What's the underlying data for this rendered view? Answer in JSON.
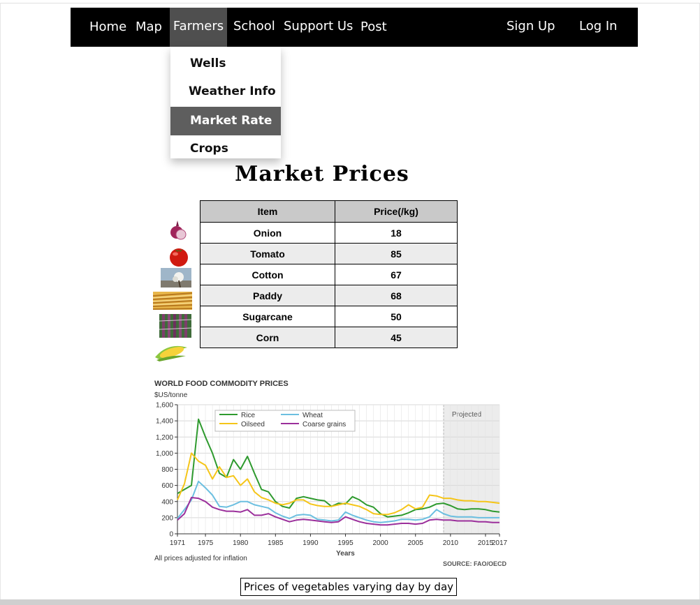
{
  "nav": {
    "home": "Home",
    "map": "Map",
    "farmers": "Farmers",
    "school": "School",
    "support": "Support Us",
    "post": "Post",
    "signup": "Sign Up",
    "login": "Log In"
  },
  "dropdown": {
    "wells": "Wells",
    "weather": "Weather Info",
    "market": "Market Rate",
    "crops": "Crops"
  },
  "page_title": "Market Prices",
  "table": {
    "headers": [
      "Item",
      "Price(/kg)"
    ],
    "rows": [
      {
        "item": "Onion",
        "price": "18"
      },
      {
        "item": "Tomato",
        "price": "85"
      },
      {
        "item": "Cotton",
        "price": "67"
      },
      {
        "item": "Paddy",
        "price": "68"
      },
      {
        "item": "Sugarcane",
        "price": "50"
      },
      {
        "item": "Corn",
        "price": "45"
      }
    ]
  },
  "chart_data": {
    "type": "line",
    "title": "WORLD FOOD COMMODITY PRICES",
    "subtitle": "$US/tonne",
    "xlabel": "Years",
    "ylabel": "",
    "xlim": [
      1971,
      2017
    ],
    "ylim": [
      0,
      1600
    ],
    "x_ticks": [
      "1971",
      "1975",
      "1980",
      "1985",
      "1990",
      "1995",
      "2000",
      "2005",
      "2010",
      "2015",
      "2017"
    ],
    "y_ticks": [
      "0",
      "200",
      "400",
      "600",
      "800",
      "1,000",
      "1,200",
      "1,400",
      "1,600"
    ],
    "projected_label": "Projected",
    "projected_start": 2009,
    "footnote": "All prices adjusted for inflation",
    "source": "SOURCE: FAO/OECD",
    "legend_position": "top-left",
    "grid": true,
    "x": [
      1971,
      1972,
      1973,
      1974,
      1975,
      1976,
      1977,
      1978,
      1979,
      1980,
      1981,
      1982,
      1983,
      1984,
      1985,
      1986,
      1987,
      1988,
      1989,
      1990,
      1991,
      1992,
      1993,
      1994,
      1995,
      1996,
      1997,
      1998,
      1999,
      2000,
      2001,
      2002,
      2003,
      2004,
      2005,
      2006,
      2007,
      2008,
      2009,
      2010,
      2011,
      2012,
      2013,
      2014,
      2015,
      2016,
      2017
    ],
    "series": [
      {
        "name": "Rice",
        "color": "#2e9a2e",
        "values": [
          500,
          550,
          600,
          1420,
          1200,
          1000,
          750,
          700,
          920,
          800,
          960,
          750,
          550,
          520,
          400,
          340,
          320,
          440,
          460,
          440,
          420,
          410,
          340,
          380,
          370,
          460,
          420,
          360,
          330,
          250,
          210,
          220,
          230,
          260,
          300,
          310,
          330,
          370,
          380,
          350,
          310,
          300,
          310,
          310,
          300,
          280,
          270
        ]
      },
      {
        "name": "Wheat",
        "color": "#6bbfe0",
        "values": [
          190,
          300,
          420,
          650,
          570,
          480,
          340,
          330,
          360,
          400,
          400,
          360,
          340,
          320,
          260,
          220,
          190,
          230,
          240,
          230,
          180,
          170,
          160,
          170,
          270,
          230,
          200,
          170,
          150,
          140,
          150,
          160,
          180,
          180,
          170,
          180,
          210,
          300,
          250,
          220,
          210,
          210,
          210,
          200,
          200,
          200,
          200
        ]
      },
      {
        "name": "Oilseed",
        "color": "#f5c518",
        "values": [
          420,
          620,
          1000,
          900,
          850,
          680,
          830,
          700,
          720,
          600,
          680,
          520,
          450,
          420,
          380,
          360,
          380,
          420,
          420,
          370,
          350,
          340,
          340,
          360,
          380,
          360,
          340,
          300,
          250,
          240,
          240,
          260,
          300,
          360,
          310,
          330,
          480,
          470,
          440,
          440,
          420,
          410,
          410,
          400,
          400,
          390,
          380
        ]
      },
      {
        "name": "Coarse grains",
        "color": "#9b2f9b",
        "values": [
          170,
          250,
          450,
          440,
          400,
          330,
          300,
          280,
          280,
          270,
          300,
          230,
          230,
          250,
          210,
          180,
          150,
          170,
          180,
          170,
          160,
          150,
          140,
          150,
          210,
          180,
          150,
          130,
          120,
          110,
          110,
          120,
          130,
          130,
          120,
          130,
          170,
          180,
          170,
          170,
          160,
          160,
          160,
          150,
          150,
          140,
          140
        ]
      }
    ]
  },
  "caption": "Prices of vegetables varying day by day"
}
